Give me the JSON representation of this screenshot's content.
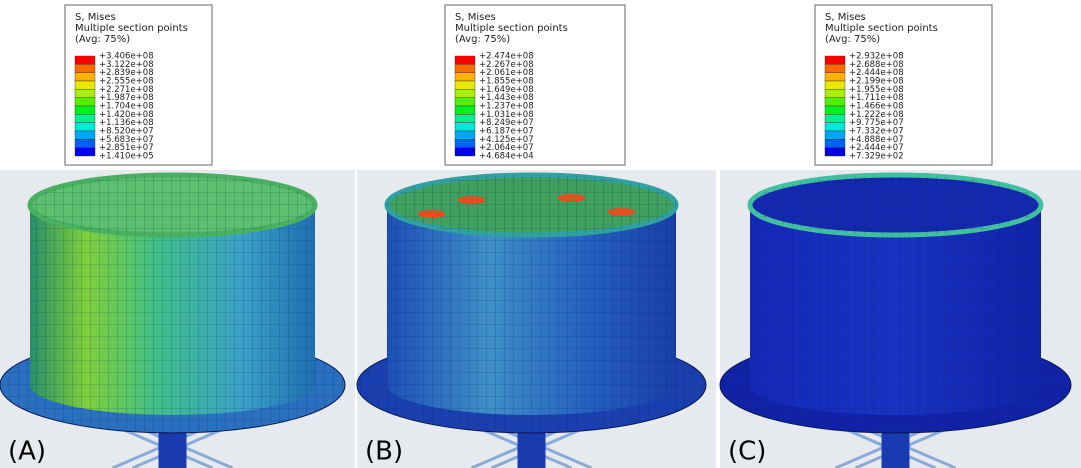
{
  "panels": [
    {
      "label": "(A)",
      "legend": {
        "title": "S, Mises",
        "subtitle": "Multiple section points",
        "note": "(Avg: 75%)",
        "values": [
          "+3.406e+08",
          "+3.122e+08",
          "+2.839e+08",
          "+2.555e+08",
          "+2.271e+08",
          "+1.987e+08",
          "+1.704e+08",
          "+1.420e+08",
          "+1.136e+08",
          "+8.520e+07",
          "+5.683e+07",
          "+2.851e+07",
          "+1.410e+05"
        ]
      }
    },
    {
      "label": "(B)",
      "legend": {
        "title": "S, Mises",
        "subtitle": "Multiple section points",
        "note": "(Avg: 75%)",
        "values": [
          "+2.474e+08",
          "+2.267e+08",
          "+2.061e+08",
          "+1.855e+08",
          "+1.649e+08",
          "+1.443e+08",
          "+1.237e+08",
          "+1.031e+08",
          "+8.249e+07",
          "+6.187e+07",
          "+4.125e+07",
          "+2.064e+07",
          "+4.684e+04"
        ]
      }
    },
    {
      "label": "(C)",
      "legend": {
        "title": "S, Mises",
        "subtitle": "Multiple section points",
        "note": "(Avg: 75%)",
        "values": [
          "+2.932e+08",
          "+2.688e+08",
          "+2.444e+08",
          "+2.199e+08",
          "+1.955e+08",
          "+1.711e+08",
          "+1.466e+08",
          "+1.222e+08",
          "+9.775e+07",
          "+7.332e+07",
          "+4.888e+07",
          "+2.444e+07",
          "+7.329e+02"
        ]
      }
    }
  ]
}
